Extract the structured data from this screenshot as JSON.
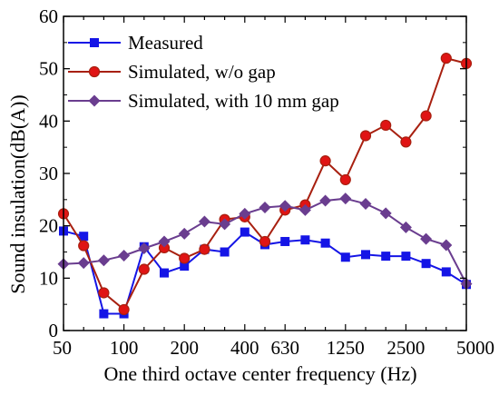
{
  "chart_data": {
    "type": "line",
    "title": "",
    "xlabel": "One third octave center frequency (Hz)",
    "ylabel": "Sound insulation(dB(A))",
    "ylim": [
      0,
      60
    ],
    "yticks": [
      0,
      10,
      20,
      30,
      40,
      50,
      60
    ],
    "x_categories": [
      "50",
      "63",
      "80",
      "100",
      "125",
      "160",
      "200",
      "250",
      "315",
      "400",
      "500",
      "630",
      "800",
      "1000",
      "1250",
      "1600",
      "2000",
      "2500",
      "3150",
      "4000",
      "5000"
    ],
    "x_tick_labels": [
      "50",
      "100",
      "200",
      "400",
      "630",
      "1250",
      "2500",
      "5000"
    ],
    "grid": false,
    "legend_position": "top-left",
    "series": [
      {
        "name": "Measured",
        "color": "#1515e6",
        "marker": "square",
        "values": [
          19.0,
          18.0,
          3.2,
          3.2,
          16.0,
          11.0,
          12.3,
          15.5,
          15.0,
          18.8,
          16.4,
          17.0,
          17.3,
          16.7,
          14.0,
          14.5,
          14.2,
          14.2,
          12.8,
          11.2,
          8.8
        ]
      },
      {
        "name": "Simulated, w/o gap",
        "color": "#a82010",
        "marker": "circle",
        "values": [
          22.3,
          16.2,
          7.2,
          4.0,
          11.7,
          15.8,
          13.8,
          15.5,
          21.2,
          21.7,
          17.0,
          23.0,
          24.0,
          32.4,
          28.8,
          37.2,
          39.2,
          36.0,
          41.0,
          52.0,
          51.0
        ]
      },
      {
        "name": "Simulated, with 10 mm gap",
        "color": "#6a3d8f",
        "marker": "diamond",
        "values": [
          12.7,
          12.9,
          13.4,
          14.3,
          15.7,
          17.0,
          18.5,
          20.8,
          20.3,
          22.3,
          23.5,
          23.8,
          23.0,
          24.8,
          25.2,
          24.2,
          22.4,
          19.7,
          17.5,
          16.3,
          8.9
        ]
      }
    ]
  }
}
